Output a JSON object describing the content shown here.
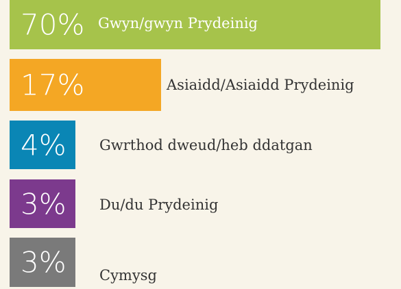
{
  "items": [
    {
      "value": "70%",
      "label": "Gwyn/gwyn Prydeinig",
      "color": "#a6c34b"
    },
    {
      "value": "17%",
      "label": "Asiaidd/Asiaidd Prydeinig",
      "color": "#f4a724"
    },
    {
      "value": "4%",
      "label": "Gwrthod dweud/heb ddatgan",
      "color": "#0a86b5"
    },
    {
      "value": "3%",
      "label": "Du/du Prydeinig",
      "color": "#7c3a8d"
    },
    {
      "value": "3%",
      "label": "Cymysg",
      "color": "#7a7a7a"
    }
  ]
}
